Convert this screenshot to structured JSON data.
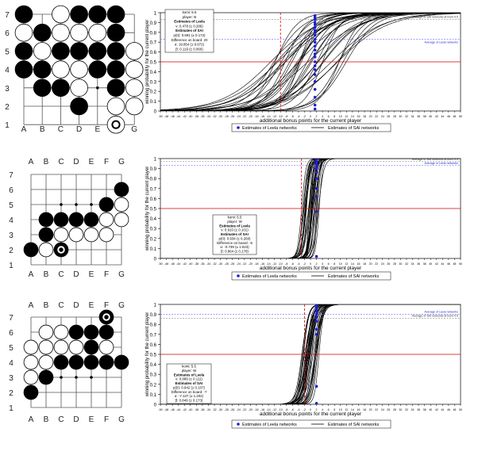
{
  "colors": {
    "stone_black": "#000000",
    "stone_white": "#ffffff",
    "grid": "#555555",
    "curve": "#000000",
    "leela_points": "#1f1fd0",
    "sai_line": "#888888",
    "leela_line": "#6666ff",
    "red_line": "#d00000",
    "red_dash": "#d00000"
  },
  "boards": [
    {
      "columns": [
        "A",
        "B",
        "C",
        "D",
        "E",
        "F",
        "G"
      ],
      "rows": [
        "7",
        "6",
        "5",
        "4",
        "3",
        "2",
        "1"
      ],
      "col_labels_position": "bottom",
      "stones": [
        {
          "c": 0,
          "r": 7,
          "color": "b"
        },
        {
          "c": 2,
          "r": 7,
          "color": "w"
        },
        {
          "c": 3,
          "r": 7,
          "color": "b"
        },
        {
          "c": 4,
          "r": 7,
          "color": "b"
        },
        {
          "c": 5,
          "r": 7,
          "color": "b"
        },
        {
          "c": 0,
          "r": 6,
          "color": "w"
        },
        {
          "c": 1,
          "r": 6,
          "color": "b"
        },
        {
          "c": 2,
          "r": 6,
          "color": "w"
        },
        {
          "c": 3,
          "r": 6,
          "color": "w"
        },
        {
          "c": 4,
          "r": 6,
          "color": "w"
        },
        {
          "c": 5,
          "r": 6,
          "color": "b"
        },
        {
          "c": 0,
          "r": 5,
          "color": "b"
        },
        {
          "c": 1,
          "r": 5,
          "color": "w"
        },
        {
          "c": 2,
          "r": 5,
          "color": "b"
        },
        {
          "c": 3,
          "r": 5,
          "color": "b"
        },
        {
          "c": 4,
          "r": 5,
          "color": "b"
        },
        {
          "c": 5,
          "r": 5,
          "color": "b"
        },
        {
          "c": 6,
          "r": 5,
          "color": "w"
        },
        {
          "c": 0,
          "r": 4,
          "color": "b"
        },
        {
          "c": 1,
          "r": 4,
          "color": "b"
        },
        {
          "c": 2,
          "r": 4,
          "color": "w"
        },
        {
          "c": 3,
          "r": 4,
          "color": "w"
        },
        {
          "c": 4,
          "r": 4,
          "color": "b"
        },
        {
          "c": 5,
          "r": 4,
          "color": "b"
        },
        {
          "c": 6,
          "r": 4,
          "color": "w"
        },
        {
          "c": 1,
          "r": 3,
          "color": "b"
        },
        {
          "c": 2,
          "r": 3,
          "color": "b"
        },
        {
          "c": 3,
          "r": 3,
          "color": "w"
        },
        {
          "c": 5,
          "r": 3,
          "color": "b"
        },
        {
          "c": 6,
          "r": 3,
          "color": "w"
        },
        {
          "c": 3,
          "r": 2,
          "color": "b"
        },
        {
          "c": 5,
          "r": 2,
          "color": "w"
        },
        {
          "c": 6,
          "r": 2,
          "color": "w"
        },
        {
          "c": 5,
          "r": 1,
          "color": "w",
          "last": true
        }
      ],
      "dots": [
        {
          "c": 4,
          "r": 3
        }
      ]
    },
    {
      "columns": [
        "A",
        "B",
        "C",
        "D",
        "E",
        "F",
        "G"
      ],
      "rows": [
        "7",
        "6",
        "5",
        "4",
        "3",
        "2",
        "1"
      ],
      "col_labels_position": "both",
      "stones": [
        {
          "c": 6,
          "r": 6,
          "color": "b"
        },
        {
          "c": 5,
          "r": 5,
          "color": "b"
        },
        {
          "c": 6,
          "r": 5,
          "color": "w"
        },
        {
          "c": 1,
          "r": 4,
          "color": "b"
        },
        {
          "c": 2,
          "r": 4,
          "color": "b"
        },
        {
          "c": 3,
          "r": 4,
          "color": "b"
        },
        {
          "c": 4,
          "r": 4,
          "color": "b"
        },
        {
          "c": 5,
          "r": 4,
          "color": "w"
        },
        {
          "c": 6,
          "r": 4,
          "color": "w"
        },
        {
          "c": 1,
          "r": 3,
          "color": "b"
        },
        {
          "c": 2,
          "r": 3,
          "color": "w"
        },
        {
          "c": 3,
          "r": 3,
          "color": "w"
        },
        {
          "c": 4,
          "r": 3,
          "color": "w"
        },
        {
          "c": 5,
          "r": 3,
          "color": "w"
        },
        {
          "c": 0,
          "r": 2,
          "color": "b"
        },
        {
          "c": 1,
          "r": 2,
          "color": "w"
        },
        {
          "c": 2,
          "r": 2,
          "color": "b",
          "last": true
        }
      ],
      "dots": [
        {
          "c": 2,
          "r": 5
        },
        {
          "c": 3,
          "r": 5
        },
        {
          "c": 4,
          "r": 5
        }
      ]
    },
    {
      "columns": [
        "A",
        "B",
        "C",
        "D",
        "E",
        "F",
        "G"
      ],
      "rows": [
        "7",
        "6",
        "5",
        "4",
        "3",
        "2",
        "1"
      ],
      "col_labels_position": "both",
      "stones": [
        {
          "c": 5,
          "r": 7,
          "color": "b",
          "last": true
        },
        {
          "c": 1,
          "r": 6,
          "color": "w"
        },
        {
          "c": 2,
          "r": 6,
          "color": "w"
        },
        {
          "c": 3,
          "r": 6,
          "color": "b"
        },
        {
          "c": 4,
          "r": 6,
          "color": "b"
        },
        {
          "c": 5,
          "r": 6,
          "color": "b"
        },
        {
          "c": 0,
          "r": 5,
          "color": "w"
        },
        {
          "c": 1,
          "r": 5,
          "color": "w"
        },
        {
          "c": 2,
          "r": 5,
          "color": "w"
        },
        {
          "c": 3,
          "r": 5,
          "color": "w"
        },
        {
          "c": 4,
          "r": 5,
          "color": "b"
        },
        {
          "c": 5,
          "r": 5,
          "color": "w"
        },
        {
          "c": 0,
          "r": 4,
          "color": "w"
        },
        {
          "c": 1,
          "r": 4,
          "color": "w"
        },
        {
          "c": 2,
          "r": 4,
          "color": "b"
        },
        {
          "c": 3,
          "r": 4,
          "color": "b"
        },
        {
          "c": 4,
          "r": 4,
          "color": "b"
        },
        {
          "c": 5,
          "r": 4,
          "color": "b"
        },
        {
          "c": 6,
          "r": 4,
          "color": "b"
        },
        {
          "c": 0,
          "r": 3,
          "color": "w"
        },
        {
          "c": 1,
          "r": 3,
          "color": "b"
        },
        {
          "c": 0,
          "r": 2,
          "color": "b"
        }
      ],
      "dots": [
        {
          "c": 2,
          "r": 3
        },
        {
          "c": 3,
          "r": 3
        },
        {
          "c": 4,
          "r": 3
        }
      ]
    }
  ],
  "chart_data": [
    {
      "type": "line",
      "ylabel": "winning probability for the current player",
      "xlabel": "additional bonus points for the current player",
      "xlim": [
        -50,
        50
      ],
      "ylim": [
        0,
        1
      ],
      "xticks_step": 2,
      "yticks": [
        0,
        0.1,
        0.2,
        0.3,
        0.4,
        0.5,
        0.6,
        0.7,
        0.8,
        0.9,
        1
      ],
      "grid": false,
      "sai_avg": 0.93,
      "leela_avg": 0.73,
      "red_hline": 0.5,
      "red_vline": -10,
      "sai_avg_label": "Average of SAI networks at komi 0.5",
      "leela_avg_label": "Average of Leela networks",
      "leela_x": 1.5,
      "leela_points": [
        0.97,
        0.95,
        0.93,
        0.9,
        0.88,
        0.85,
        0.82,
        0.8,
        0.77,
        0.73,
        0.7,
        0.66,
        0.62,
        0.58,
        0.55,
        0.5,
        0.46,
        0.42,
        0.37,
        0.3,
        0.22,
        0.14,
        0.06,
        0.02
      ],
      "curve_params": {
        "center_min": -14,
        "center_max": 12,
        "scale_min": 2.5,
        "scale_max": 9,
        "count": 36
      },
      "info": [
        {
          "text": "komi: 5.5",
          "bold": false
        },
        {
          "text": "player: B",
          "bold": false
        },
        {
          "text": "Estimates of Leela",
          "bold": true
        },
        {
          "text": "v: 0.478 (± 0.286)",
          "bold": false
        },
        {
          "text": "Estimates of SAI",
          "bold": true
        },
        {
          "text": "p(0): 0.691 (± 0.172)",
          "bold": false
        },
        {
          "text": "Difference on board: 20",
          "bold": false
        },
        {
          "text": "α: 19.854 (± 9.972)",
          "bold": false
        },
        {
          "text": "β: 0.119 (± 0.060)",
          "bold": false
        }
      ],
      "info_pos": "top-left",
      "legend": [
        "Estimates of Leela networks",
        "Estimates of SAI networks"
      ]
    },
    {
      "type": "line",
      "ylabel": "winning probability for the current player",
      "xlabel": "additional bonus points for the current player",
      "xlim": [
        -50,
        50
      ],
      "ylim": [
        0,
        1
      ],
      "xticks_step": 2,
      "yticks": [
        0,
        0.1,
        0.2,
        0.3,
        0.4,
        0.5,
        0.6,
        0.7,
        0.8,
        0.9,
        1
      ],
      "grid": false,
      "sai_avg": 0.97,
      "leela_avg": 0.93,
      "red_hline": 0.5,
      "red_vline": -3,
      "sai_avg_label": "Average of SAI networks at komi 0.5",
      "leela_avg_label": "Average of Leela networks",
      "leela_x": 2,
      "leela_points": [
        0.99,
        0.98,
        0.97,
        0.96,
        0.94,
        0.92,
        0.9,
        0.86,
        0.8,
        0.7,
        0.62,
        0.47,
        0.02
      ],
      "curve_params": {
        "center_min": -3,
        "center_max": 4,
        "scale_min": 0.4,
        "scale_max": 1.0,
        "count": 34
      },
      "info": [
        {
          "text": "komi: 5.5",
          "bold": false
        },
        {
          "text": "player: W",
          "bold": false
        },
        {
          "text": "Estimates of Leela",
          "bold": true
        },
        {
          "text": "v: 0.910 (± 0.101)",
          "bold": false
        },
        {
          "text": "Estimates of SAI",
          "bold": true
        },
        {
          "text": "p(0): 0.934 (± 0.260)",
          "bold": false
        },
        {
          "text": "Difference on board: -6",
          "bold": false
        },
        {
          "text": "α: -0.739 (± 1.023)",
          "bold": false
        },
        {
          "text": "β: 0.864 (± 0.178)",
          "bold": false
        }
      ],
      "info_pos": "bottom-left",
      "legend": [
        "Estimates of Leela networks",
        "Estimates of SAI networks"
      ]
    },
    {
      "type": "line",
      "ylabel": "winning probability for the current player",
      "xlabel": "additional bonus points for the current player",
      "xlim": [
        -50,
        50
      ],
      "ylim": [
        0,
        1
      ],
      "xticks_step": 2,
      "yticks": [
        0,
        0.1,
        0.2,
        0.3,
        0.4,
        0.5,
        0.6,
        0.7,
        0.8,
        0.9,
        1
      ],
      "grid": false,
      "sai_avg": 0.86,
      "leela_avg": 0.9,
      "red_hline": 0.5,
      "red_vline": -2,
      "sai_avg_label": "Average of SAI networks at komi 0.5",
      "leela_avg_label": "Average of Leela networks",
      "leela_x": 2,
      "leela_points": [
        0.99,
        0.97,
        0.95,
        0.93,
        0.9,
        0.87,
        0.83,
        0.75,
        0.7,
        0.18,
        0.01
      ],
      "curve_params": {
        "center_min": -3,
        "center_max": 3,
        "scale_min": 0.7,
        "scale_max": 1.4,
        "count": 34
      },
      "info": [
        {
          "text": "komi: 5.5",
          "bold": false
        },
        {
          "text": "player: W",
          "bold": false
        },
        {
          "text": "Estimates of Leela",
          "bold": true
        },
        {
          "text": "v: 0.889 (± 0.111)",
          "bold": false
        },
        {
          "text": "Estimates of SAI",
          "bold": true
        },
        {
          "text": "p(0): 0.942 (± 0.107)",
          "bold": false
        },
        {
          "text": "Difference on board: -7",
          "bold": false
        },
        {
          "text": "α: -7.137 (± 1.202)",
          "bold": false
        },
        {
          "text": "β: 0.849 (± 0.173)",
          "bold": false
        }
      ],
      "info_pos": "bottom-left",
      "legend": [
        "Estimates of Leela networks",
        "Estimates of SAI networks"
      ]
    }
  ]
}
